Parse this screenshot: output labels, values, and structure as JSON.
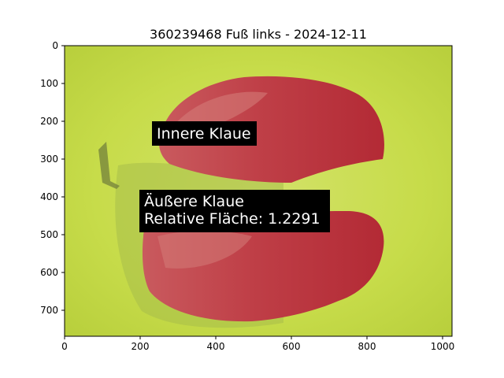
{
  "title": "360239468 Fuß links - 2024-12-11",
  "image": {
    "background_color": "#c7dc4a",
    "overlay_color": "#c0283a",
    "depicts": "Two claw sole halves highlighted with red segmentation overlay on a green background"
  },
  "axes": {
    "x_ticks": [
      "0",
      "200",
      "400",
      "600",
      "800",
      "1000"
    ],
    "y_ticks": [
      "0",
      "100",
      "200",
      "300",
      "400",
      "500",
      "600",
      "700"
    ]
  },
  "annotations": {
    "inner": {
      "label": "Innere Klaue"
    },
    "outer": {
      "line1": "Äußere Klaue",
      "line2": "Relative Fläche: 1.2291"
    }
  }
}
